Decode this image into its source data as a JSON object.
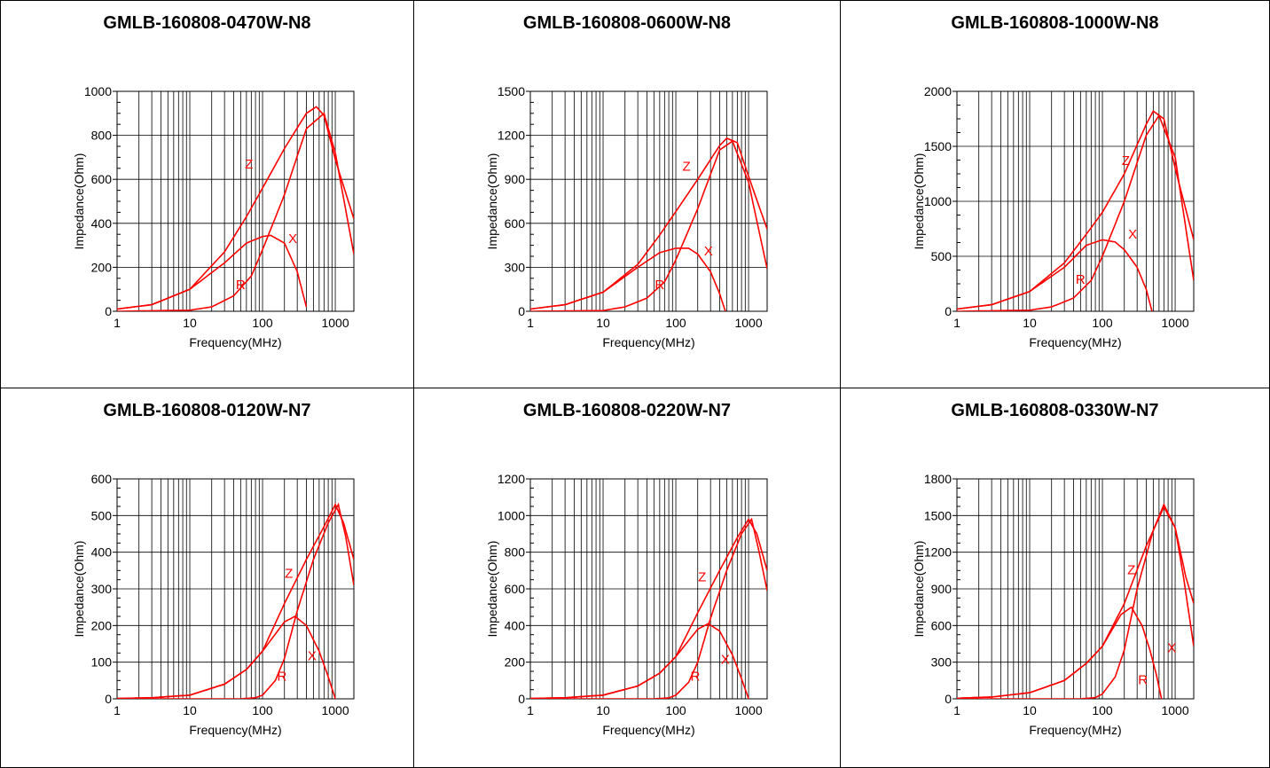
{
  "xlabel": "Frequency(MHz)",
  "ylabel": "Impedance(Ohm)",
  "curve_color": "#ff0000",
  "chart_data": [
    {
      "title": "GMLB-160808-0470W-N8",
      "type": "line",
      "xscale": "log",
      "xlim": [
        1,
        1800
      ],
      "xticks": [
        1,
        10,
        100,
        1000
      ],
      "xtick_labels": [
        "1",
        "10",
        "100",
        "1000"
      ],
      "ylim": [
        0,
        1000
      ],
      "yticks": [
        0,
        200,
        400,
        600,
        800,
        1000
      ],
      "ytick_labels": [
        "0",
        "200",
        "400",
        "600",
        "800",
        "1000"
      ],
      "grid": true,
      "series": [
        {
          "name": "Z",
          "x": [
            1,
            3,
            10,
            30,
            60,
            100,
            200,
            400,
            550,
            700,
            1000,
            1800
          ],
          "y": [
            10,
            30,
            100,
            270,
            430,
            560,
            740,
            900,
            930,
            890,
            690,
            420
          ]
        },
        {
          "name": "R",
          "x": [
            1,
            10,
            20,
            40,
            70,
            100,
            200,
            400,
            700,
            1000,
            1800
          ],
          "y": [
            0,
            5,
            20,
            70,
            160,
            280,
            530,
            830,
            900,
            720,
            260
          ]
        },
        {
          "name": "X",
          "x": [
            1,
            3,
            10,
            30,
            60,
            100,
            130,
            200,
            300,
            400
          ],
          "y": [
            10,
            30,
            100,
            220,
            310,
            340,
            345,
            310,
            180,
            20
          ]
        }
      ],
      "labels": [
        {
          "text": "Z",
          "x": 65,
          "y": 650
        },
        {
          "text": "X",
          "x": 260,
          "y": 310
        },
        {
          "text": "R",
          "x": 50,
          "y": 100
        }
      ]
    },
    {
      "title": "GMLB-160808-0600W-N8",
      "type": "line",
      "xscale": "log",
      "xlim": [
        1,
        1800
      ],
      "xticks": [
        1,
        10,
        100,
        1000
      ],
      "xtick_labels": [
        "1",
        "10",
        "100",
        "1000"
      ],
      "ylim": [
        0,
        1500
      ],
      "yticks": [
        0,
        300,
        600,
        900,
        1200,
        1500
      ],
      "ytick_labels": [
        "0",
        "300",
        "600",
        "900",
        "1200",
        "1500"
      ],
      "grid": true,
      "series": [
        {
          "name": "Z",
          "x": [
            1,
            3,
            10,
            30,
            60,
            100,
            200,
            400,
            500,
            700,
            1000,
            1800
          ],
          "y": [
            15,
            45,
            130,
            320,
            520,
            680,
            900,
            1130,
            1180,
            1150,
            920,
            560
          ]
        },
        {
          "name": "R",
          "x": [
            1,
            10,
            20,
            40,
            70,
            100,
            200,
            400,
            600,
            1000,
            1800
          ],
          "y": [
            0,
            5,
            30,
            90,
            200,
            350,
            700,
            1100,
            1160,
            880,
            290
          ]
        },
        {
          "name": "X",
          "x": [
            1,
            3,
            10,
            30,
            60,
            100,
            150,
            200,
            300,
            400,
            480
          ],
          "y": [
            15,
            45,
            130,
            300,
            400,
            430,
            430,
            390,
            270,
            120,
            0
          ]
        }
      ],
      "labels": [
        {
          "text": "Z",
          "x": 140,
          "y": 960
        },
        {
          "text": "X",
          "x": 280,
          "y": 380
        },
        {
          "text": "R",
          "x": 60,
          "y": 150
        }
      ]
    },
    {
      "title": "GMLB-160808-1000W-N8",
      "type": "line",
      "xscale": "log",
      "xlim": [
        1,
        1800
      ],
      "xticks": [
        1,
        10,
        100,
        1000
      ],
      "xtick_labels": [
        "1",
        "10",
        "100",
        "1000"
      ],
      "ylim": [
        0,
        2000
      ],
      "yticks": [
        0,
        500,
        1000,
        1500,
        2000
      ],
      "ytick_labels": [
        "0",
        "500",
        "1000",
        "1500",
        "2000"
      ],
      "grid": true,
      "series": [
        {
          "name": "Z",
          "x": [
            1,
            3,
            10,
            30,
            60,
            100,
            200,
            400,
            500,
            700,
            1000,
            1800
          ],
          "y": [
            20,
            60,
            180,
            440,
            700,
            900,
            1250,
            1700,
            1820,
            1750,
            1300,
            650
          ]
        },
        {
          "name": "R",
          "x": [
            1,
            10,
            20,
            40,
            70,
            100,
            200,
            400,
            600,
            1000,
            1800
          ],
          "y": [
            0,
            10,
            40,
            120,
            280,
            500,
            1000,
            1600,
            1780,
            1400,
            280
          ]
        },
        {
          "name": "X",
          "x": [
            1,
            3,
            10,
            30,
            60,
            100,
            150,
            200,
            300,
            400,
            480
          ],
          "y": [
            20,
            60,
            180,
            400,
            600,
            650,
            630,
            560,
            400,
            200,
            0
          ]
        }
      ],
      "labels": [
        {
          "text": "Z",
          "x": 210,
          "y": 1330
        },
        {
          "text": "X",
          "x": 260,
          "y": 660
        },
        {
          "text": "R",
          "x": 50,
          "y": 250
        }
      ]
    },
    {
      "title": "GMLB-160808-0120W-N7",
      "type": "line",
      "xscale": "log",
      "xlim": [
        1,
        1800
      ],
      "xticks": [
        1,
        10,
        100,
        1000
      ],
      "xtick_labels": [
        "1",
        "10",
        "100",
        "1000"
      ],
      "ylim": [
        0,
        600
      ],
      "yticks": [
        0,
        100,
        200,
        300,
        400,
        500,
        600
      ],
      "ytick_labels": [
        "0",
        "100",
        "200",
        "300",
        "400",
        "500",
        "600"
      ],
      "grid": true,
      "series": [
        {
          "name": "Z",
          "x": [
            1,
            3,
            10,
            30,
            60,
            100,
            200,
            400,
            700,
            1000,
            1300,
            1800
          ],
          "y": [
            1,
            3,
            10,
            40,
            80,
            130,
            260,
            380,
            470,
            530,
            480,
            380
          ]
        },
        {
          "name": "R",
          "x": [
            1,
            50,
            80,
            100,
            150,
            200,
            300,
            500,
            800,
            1100,
            1400,
            1800
          ],
          "y": [
            0,
            0,
            3,
            10,
            50,
            110,
            240,
            380,
            480,
            530,
            440,
            310
          ]
        },
        {
          "name": "X",
          "x": [
            1,
            3,
            10,
            30,
            60,
            100,
            200,
            280,
            400,
            600,
            800,
            1000
          ],
          "y": [
            1,
            3,
            10,
            40,
            80,
            130,
            210,
            225,
            200,
            130,
            60,
            0
          ]
        }
      ],
      "labels": [
        {
          "text": "Z",
          "x": 230,
          "y": 330
        },
        {
          "text": "X",
          "x": 480,
          "y": 105
        },
        {
          "text": "R",
          "x": 185,
          "y": 50
        }
      ]
    },
    {
      "title": "GMLB-160808-0220W-N7",
      "type": "line",
      "xscale": "log",
      "xlim": [
        1,
        1800
      ],
      "xticks": [
        1,
        10,
        100,
        1000
      ],
      "xtick_labels": [
        "1",
        "10",
        "100",
        "1000"
      ],
      "ylim": [
        0,
        1200
      ],
      "yticks": [
        0,
        200,
        400,
        600,
        800,
        1000,
        1200
      ],
      "ytick_labels": [
        "0",
        "200",
        "400",
        "600",
        "800",
        "1000",
        "1200"
      ],
      "grid": true,
      "series": [
        {
          "name": "Z",
          "x": [
            1,
            3,
            10,
            30,
            60,
            100,
            200,
            400,
            700,
            1000,
            1300,
            1800
          ],
          "y": [
            2,
            6,
            20,
            70,
            140,
            230,
            470,
            700,
            880,
            980,
            900,
            700
          ]
        },
        {
          "name": "R",
          "x": [
            1,
            50,
            80,
            100,
            150,
            200,
            300,
            500,
            800,
            1100,
            1400,
            1800
          ],
          "y": [
            0,
            0,
            5,
            20,
            90,
            200,
            440,
            700,
            900,
            980,
            800,
            590
          ]
        },
        {
          "name": "X",
          "x": [
            1,
            3,
            10,
            30,
            60,
            100,
            200,
            280,
            400,
            600,
            800,
            1000
          ],
          "y": [
            2,
            6,
            20,
            70,
            140,
            230,
            380,
            410,
            370,
            240,
            110,
            0
          ]
        }
      ],
      "labels": [
        {
          "text": "Z",
          "x": 230,
          "y": 640
        },
        {
          "text": "X",
          "x": 480,
          "y": 190
        },
        {
          "text": "R",
          "x": 185,
          "y": 100
        }
      ]
    },
    {
      "title": "GMLB-160808-0330W-N7",
      "type": "line",
      "xscale": "log",
      "xlim": [
        1,
        1800
      ],
      "xticks": [
        1,
        10,
        100,
        1000
      ],
      "xtick_labels": [
        "1",
        "10",
        "100",
        "1000"
      ],
      "ylim": [
        0,
        1800
      ],
      "yticks": [
        0,
        300,
        600,
        900,
        1200,
        1500,
        1800
      ],
      "ytick_labels": [
        "0",
        "300",
        "600",
        "900",
        "1200",
        "1500",
        "1800"
      ],
      "grid": true,
      "series": [
        {
          "name": "Z",
          "x": [
            1,
            3,
            10,
            30,
            60,
            100,
            200,
            400,
            700,
            1000,
            1300,
            1800
          ],
          "y": [
            5,
            15,
            50,
            150,
            290,
            430,
            780,
            1250,
            1570,
            1400,
            1000,
            430
          ]
        },
        {
          "name": "R",
          "x": [
            1,
            50,
            80,
            100,
            150,
            200,
            300,
            500,
            700,
            1000,
            1400,
            1800
          ],
          "y": [
            0,
            0,
            10,
            40,
            180,
            400,
            900,
            1380,
            1590,
            1400,
            1000,
            780
          ]
        },
        {
          "name": "X",
          "x": [
            1,
            3,
            10,
            30,
            60,
            100,
            180,
            250,
            350,
            450,
            550,
            650
          ],
          "y": [
            5,
            15,
            50,
            150,
            290,
            430,
            690,
            750,
            600,
            400,
            200,
            0
          ]
        }
      ],
      "labels": [
        {
          "text": "Z",
          "x": 250,
          "y": 1020
        },
        {
          "text": "X",
          "x": 900,
          "y": 380
        },
        {
          "text": "R",
          "x": 360,
          "y": 120
        }
      ]
    }
  ]
}
